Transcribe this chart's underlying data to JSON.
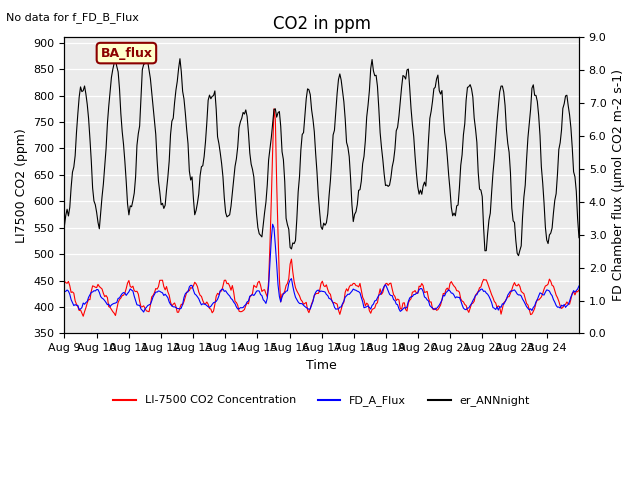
{
  "title": "CO2 in ppm",
  "top_text": "No data for f_FD_B_Flux",
  "ylabel_left": "LI7500 CO2 (ppm)",
  "ylabel_right": "FD Chamber flux (μmol CO2 m-2 s-1)",
  "xlabel": "Time",
  "ylim_left": [
    350,
    910
  ],
  "ylim_right": [
    0.0,
    9.0
  ],
  "yticks_left": [
    350,
    400,
    450,
    500,
    550,
    600,
    650,
    700,
    750,
    800,
    850,
    900
  ],
  "yticks_right": [
    0.0,
    1.0,
    2.0,
    3.0,
    4.0,
    5.0,
    6.0,
    7.0,
    8.0,
    9.0
  ],
  "xtick_labels": [
    "Aug 9",
    "Aug 10",
    "Aug 11",
    "Aug 12",
    "Aug 13",
    "Aug 14",
    "Aug 15",
    "Aug 16",
    "Aug 17",
    "Aug 18",
    "Aug 19",
    "Aug 20",
    "Aug 21",
    "Aug 22",
    "Aug 23",
    "Aug 24"
  ],
  "background_color": "#ffffff",
  "plot_bg_color": "#ebebeb",
  "grid_color": "#ffffff",
  "BA_flux_box": {
    "text": "BA_flux",
    "color": "darkred",
    "bg": "#ffffcc"
  },
  "title_fontsize": 12,
  "axis_fontsize": 9,
  "tick_fontsize": 8
}
